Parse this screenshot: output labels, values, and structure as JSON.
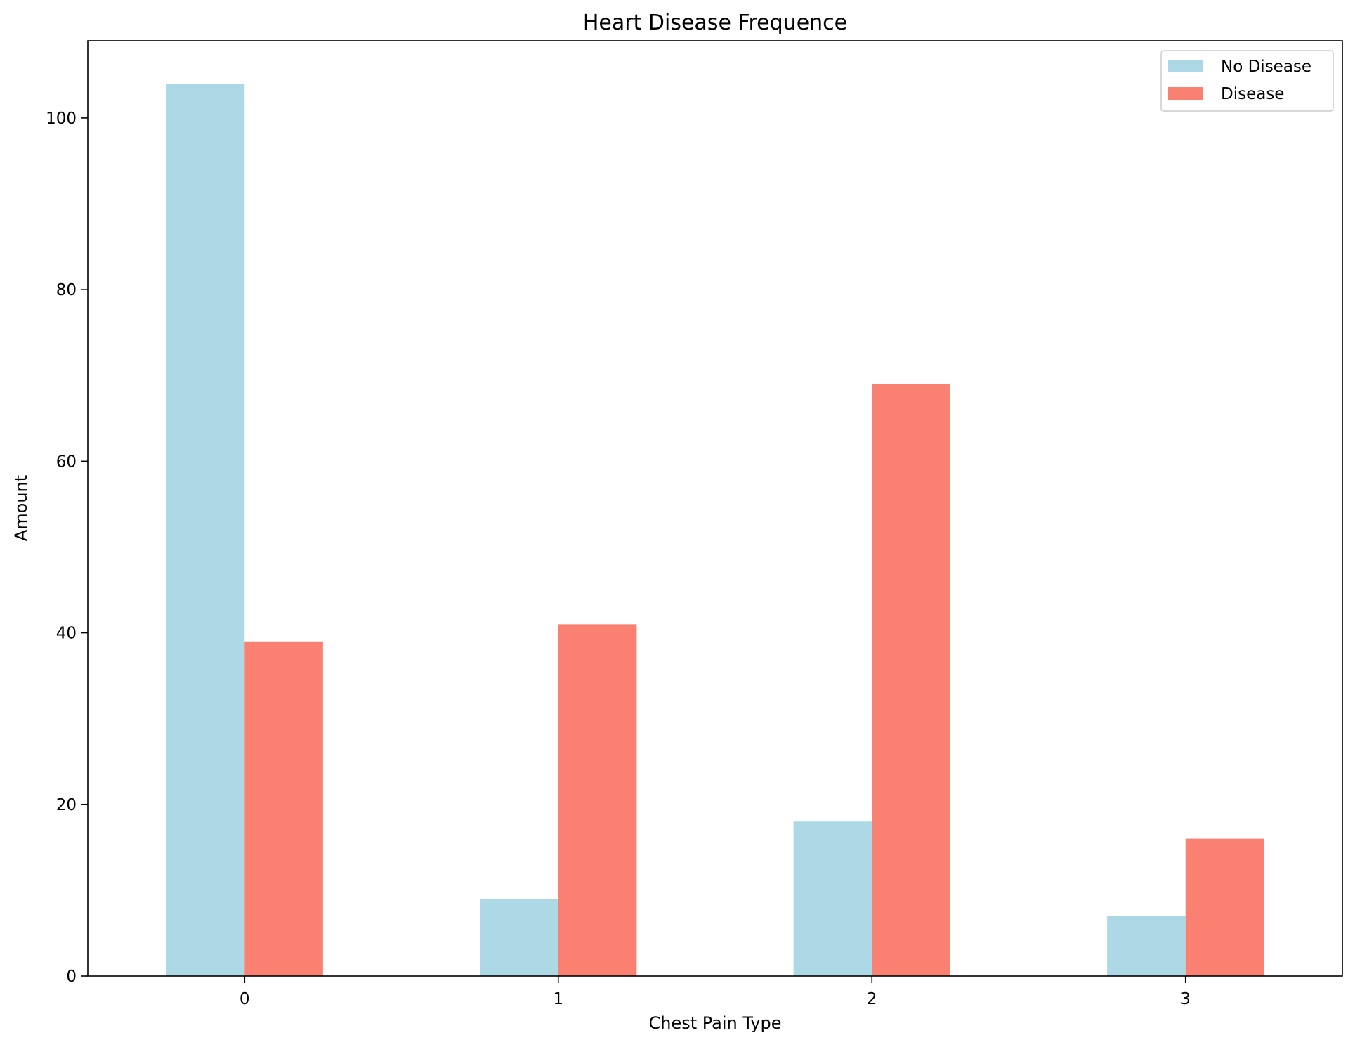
{
  "chart_data": {
    "type": "bar",
    "title": "Heart Disease Frequence",
    "xlabel": "Chest Pain Type",
    "ylabel": "Amount",
    "categories": [
      "0",
      "1",
      "2",
      "3"
    ],
    "series": [
      {
        "name": "No Disease",
        "color": "#add8e6",
        "values": [
          104,
          9,
          18,
          7
        ]
      },
      {
        "name": "Disease",
        "color": "#fa8072",
        "values": [
          39,
          41,
          69,
          16
        ]
      }
    ],
    "ylim": [
      0,
      109
    ],
    "yticks": [
      0,
      20,
      40,
      60,
      80,
      100
    ],
    "grid": false,
    "legend_position": "top-right"
  }
}
